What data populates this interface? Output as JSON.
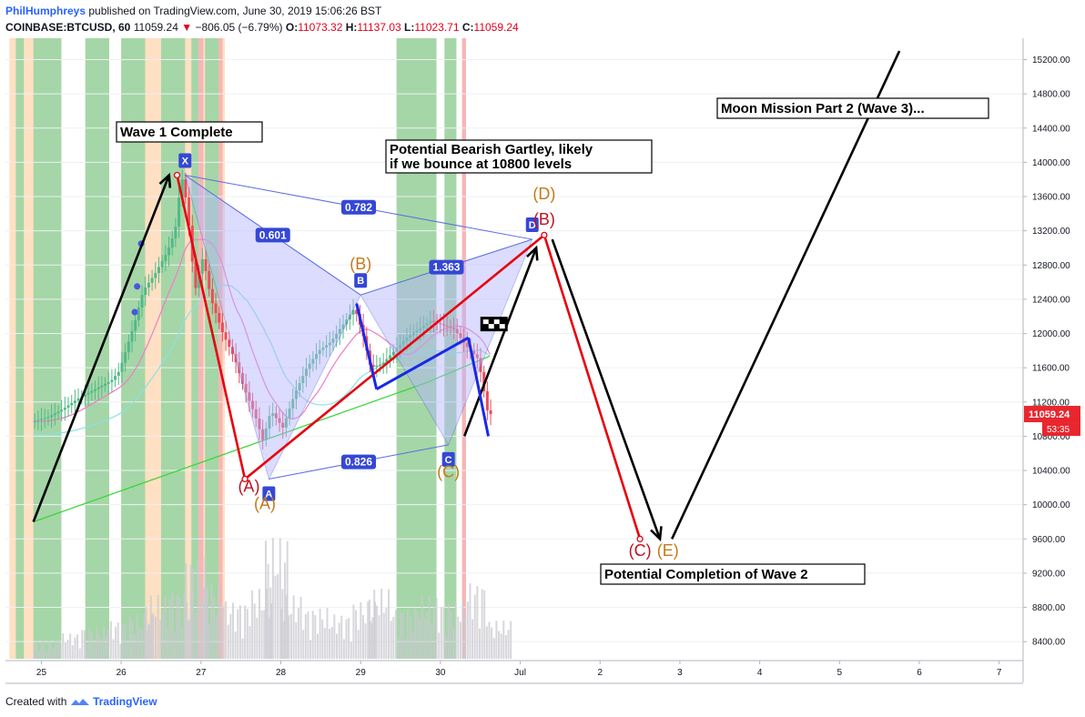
{
  "header": {
    "user": "PhilHumphreys",
    "published": " published on TradingView.com, June 30, 2019 15:06:26 BST",
    "symbol": "COINBASE:BTCUSD, 60",
    "last": "11059.24",
    "change_arrow": "▼",
    "change": "−806.05 (−6.79%)",
    "o_label": "O:",
    "o_value": "11073.32",
    "h_label": "H:",
    "h_value": "11137.03",
    "l_label": "L:",
    "l_value": "11023.71",
    "c_label": "C:",
    "c_value": "11059.24"
  },
  "footer": {
    "prefix": "Created with",
    "brand": "TradingView",
    "icon": "tradingview-logo-icon"
  },
  "colors": {
    "background": "#ffffff",
    "up_candle": "#53b987",
    "down_candle": "#eb4d5c",
    "pattern_fill": "#b3b3ff",
    "pattern_line": "#5b6ee0",
    "label_bg": "#3547d6",
    "wave_red": "#e8000d",
    "wave_black": "#000000",
    "wave_blue": "#1729e8",
    "label_brown": "#c47a1a",
    "label_darkred": "#c1121f",
    "ma_green": "#33d633",
    "ma_pink": "#f07cc8",
    "ma_cyan": "#8ce0e6",
    "price_badge": "#e8262e",
    "session_green": "#a5d6a7",
    "session_orange": "#ffe0c2",
    "session_red": "#f7b5b5"
  },
  "chart_data": {
    "type": "candlestick",
    "symbol": "COINBASE:BTCUSD",
    "interval": "60",
    "y_axis": {
      "ticks": [
        "15200.00",
        "14800.00",
        "14400.00",
        "14000.00",
        "13600.00",
        "13200.00",
        "12800.00",
        "12400.00",
        "12000.00",
        "11600.00",
        "11200.00",
        "10800.00",
        "10400.00",
        "10000.00",
        "9600.00",
        "9200.00",
        "8800.00",
        "8400.00"
      ],
      "ylim": [
        8200,
        15450
      ],
      "position": "right"
    },
    "x_axis": {
      "ticks": [
        "25",
        "26",
        "27",
        "28",
        "29",
        "30",
        "Jul",
        "2",
        "3",
        "4",
        "5",
        "6",
        "7"
      ]
    },
    "price_badge": {
      "value": "11059.24",
      "countdown": "53:35"
    },
    "ohlc_path": [
      [
        24.9,
        10970
      ],
      [
        25.1,
        11020
      ],
      [
        25.3,
        11120
      ],
      [
        25.5,
        11250
      ],
      [
        25.7,
        11350
      ],
      [
        25.9,
        11450
      ],
      [
        26.0,
        11560
      ],
      [
        26.1,
        11850
      ],
      [
        26.2,
        12150
      ],
      [
        26.3,
        12500
      ],
      [
        26.45,
        12700
      ],
      [
        26.6,
        12950
      ],
      [
        26.7,
        13200
      ],
      [
        26.78,
        13850
      ],
      [
        26.85,
        13500
      ],
      [
        26.95,
        12500
      ],
      [
        27.05,
        12900
      ],
      [
        27.15,
        12400
      ],
      [
        27.3,
        12000
      ],
      [
        27.45,
        11700
      ],
      [
        27.55,
        11400
      ],
      [
        27.7,
        11050
      ],
      [
        27.8,
        10750
      ],
      [
        27.9,
        11100
      ],
      [
        28.05,
        10900
      ],
      [
        28.2,
        11300
      ],
      [
        28.35,
        11600
      ],
      [
        28.5,
        11800
      ],
      [
        28.65,
        11900
      ],
      [
        28.8,
        12100
      ],
      [
        28.95,
        12300
      ],
      [
        29.05,
        12000
      ],
      [
        29.15,
        11600
      ],
      [
        29.3,
        11650
      ],
      [
        29.45,
        11800
      ],
      [
        29.6,
        11950
      ],
      [
        29.75,
        12050
      ],
      [
        29.9,
        12150
      ],
      [
        30.05,
        12100
      ],
      [
        30.2,
        12050
      ],
      [
        30.35,
        11850
      ],
      [
        30.5,
        11700
      ],
      [
        30.62,
        11059
      ]
    ],
    "volume": [
      [
        24.9,
        0.15
      ],
      [
        25.2,
        0.2
      ],
      [
        25.5,
        0.25
      ],
      [
        25.8,
        0.3
      ],
      [
        26.1,
        0.35
      ],
      [
        26.3,
        0.5
      ],
      [
        26.6,
        0.55
      ],
      [
        26.8,
        0.8
      ],
      [
        27.0,
        0.6
      ],
      [
        27.3,
        0.45
      ],
      [
        27.6,
        0.55
      ],
      [
        27.8,
        0.95
      ],
      [
        28.0,
        0.5
      ],
      [
        28.3,
        0.4
      ],
      [
        28.6,
        0.35
      ],
      [
        28.9,
        0.45
      ],
      [
        29.1,
        0.55
      ],
      [
        29.4,
        0.4
      ],
      [
        29.7,
        0.5
      ],
      [
        30.0,
        0.45
      ],
      [
        30.3,
        0.6
      ],
      [
        30.6,
        0.3
      ]
    ],
    "gartley": {
      "points": {
        "X": [
          26.8,
          13850
        ],
        "A": [
          27.85,
          10300
        ],
        "B": [
          29.0,
          12450
        ],
        "C": [
          30.1,
          10700
        ],
        "D": [
          31.15,
          13100
        ]
      },
      "ratios": [
        {
          "label": "0.601",
          "position": "XB"
        },
        {
          "label": "0.782",
          "position": "XD"
        },
        {
          "label": "1.363",
          "position": "BD"
        },
        {
          "label": "0.826",
          "position": "AC"
        }
      ]
    },
    "annotations": [
      {
        "text": "Wave 1 Complete"
      },
      {
        "text": "Potential Bearish Gartley, likely"
      },
      {
        "text": "if we bounce at 10800 levels"
      },
      {
        "text": "Moon Mission Part 2 (Wave 3)..."
      },
      {
        "text": "Potential Completion of Wave 2"
      }
    ],
    "wave_labels": [
      {
        "text": "(A)",
        "color": "darkred",
        "at": [
          27.6,
          10150
        ]
      },
      {
        "text": "(A)",
        "color": "brown",
        "at": [
          27.8,
          9950
        ]
      },
      {
        "text": "(B)",
        "color": "brown",
        "at": [
          29.0,
          12750
        ]
      },
      {
        "text": "(C)",
        "color": "brown",
        "at": [
          30.1,
          10320
        ]
      },
      {
        "text": "(D)",
        "color": "brown",
        "at": [
          31.3,
          13570
        ]
      },
      {
        "text": "(B)",
        "color": "darkred",
        "at": [
          31.3,
          13270
        ]
      },
      {
        "text": "(C)",
        "color": "darkred",
        "at": [
          32.5,
          9400
        ]
      },
      {
        "text": "(E)",
        "color": "brown",
        "at": [
          32.85,
          9400
        ]
      }
    ],
    "wave_lines": [
      {
        "color": "black",
        "points": [
          [
            24.9,
            9800
          ],
          [
            26.6,
            13850
          ]
        ]
      },
      {
        "color": "red",
        "points": [
          [
            26.7,
            13850
          ],
          [
            27.55,
            10300
          ],
          [
            31.3,
            13150
          ],
          [
            32.5,
            9600
          ]
        ]
      },
      {
        "color": "black",
        "points": [
          [
            30.3,
            10800
          ],
          [
            31.2,
            13000
          ]
        ]
      },
      {
        "color": "black",
        "points": [
          [
            31.4,
            13100
          ],
          [
            32.75,
            9600
          ]
        ]
      },
      {
        "color": "black",
        "points": [
          [
            32.9,
            9600
          ],
          [
            35.75,
            15300
          ]
        ]
      },
      {
        "color": "blue",
        "points": [
          [
            28.95,
            12350
          ],
          [
            29.2,
            11350
          ]
        ]
      },
      {
        "color": "blue",
        "points": [
          [
            29.2,
            11350
          ],
          [
            30.35,
            11950
          ]
        ]
      },
      {
        "color": "blue",
        "points": [
          [
            30.35,
            11950
          ],
          [
            30.6,
            10800
          ]
        ]
      }
    ],
    "dots": [
      [
        26.25,
        13050
      ],
      [
        26.2,
        12550
      ],
      [
        26.17,
        12250
      ]
    ]
  }
}
